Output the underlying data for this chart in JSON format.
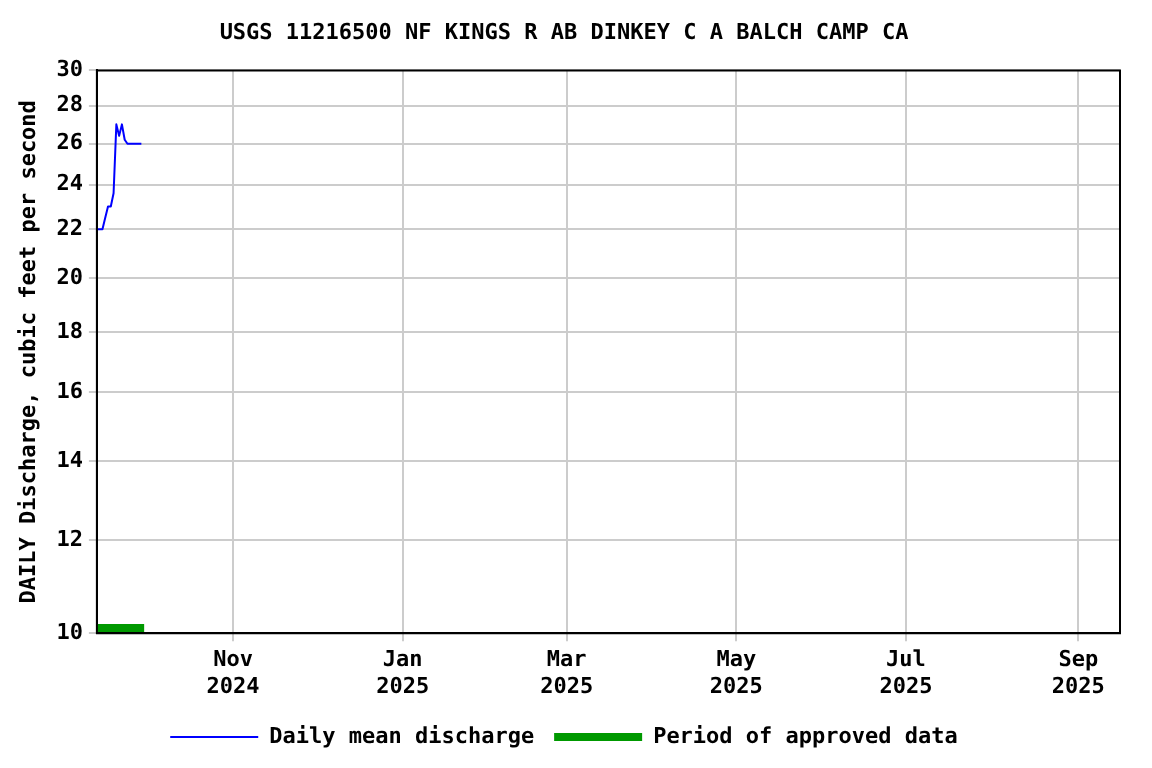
{
  "chart_data": {
    "type": "line",
    "title": "USGS 11216500 NF KINGS R AB DINKEY C A BALCH CAMP CA",
    "ylabel": "DAILY Discharge, cubic feet per second",
    "x": [
      "2024-09-13",
      "2024-09-14",
      "2024-09-15",
      "2024-09-16",
      "2024-09-17",
      "2024-09-18",
      "2024-09-19",
      "2024-09-20",
      "2024-09-21",
      "2024-09-22",
      "2024-09-23",
      "2024-09-24",
      "2024-09-25",
      "2024-09-26",
      "2024-09-27",
      "2024-09-28",
      "2024-09-29"
    ],
    "series": [
      {
        "name": "Daily mean discharge",
        "color": "#0000ff",
        "values": [
          22,
          22,
          22,
          22.5,
          23,
          23,
          23.6,
          27,
          26.4,
          27,
          26.2,
          26,
          26,
          26,
          26,
          26,
          26
        ]
      },
      {
        "name": "Period of approved data",
        "color": "#009900",
        "x": [
          "2024-09-13",
          "2024-09-30"
        ],
        "values": [
          10.1,
          10.1
        ]
      }
    ],
    "xlim": [
      "2024-09-13",
      "2025-09-16"
    ],
    "xticks": [
      {
        "value": "2024-11-01",
        "label": "Nov 2024"
      },
      {
        "value": "2025-01-01",
        "label": "Jan 2025"
      },
      {
        "value": "2025-03-01",
        "label": "Mar 2025"
      },
      {
        "value": "2025-05-01",
        "label": "May 2025"
      },
      {
        "value": "2025-07-01",
        "label": "Jul 2025"
      },
      {
        "value": "2025-09-01",
        "label": "Sep 2025"
      }
    ],
    "log": "y",
    "ylim": [
      10,
      30
    ],
    "yticks": [
      10,
      12,
      14,
      16,
      18,
      20,
      22,
      24,
      26,
      28,
      30
    ],
    "grid": true,
    "legend": "bottom",
    "marker": "none",
    "line_style": "solid"
  }
}
